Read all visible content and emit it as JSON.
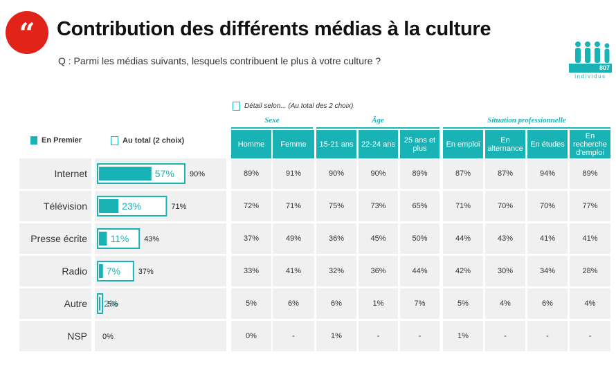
{
  "header": {
    "quote_glyph": "“",
    "title": "Contribution des différents médias à la culture",
    "question": "Q : Parmi les médias suivants, lesquels contribuent le plus à votre culture ?"
  },
  "logo": {
    "number": "807",
    "label": "individus",
    "icon": "people-icon"
  },
  "legend": {
    "first": "En Premier",
    "total": "Au total (2 choix)",
    "detail": "Détail selon... (Au total des 2 choix)"
  },
  "colors": {
    "teal": "#1ab3b5",
    "red": "#e2231a",
    "band": "#f0f0f0"
  },
  "groups": [
    {
      "label": "Sexe"
    },
    {
      "label": "Âge"
    },
    {
      "label": "Situation professionnelle"
    }
  ],
  "columns": [
    "Homme",
    "Femme",
    "15-21 ans",
    "22-24 ans",
    "25 ans et plus",
    "En emploi",
    "En alternance",
    "En études",
    "En recherche d'emploi"
  ],
  "chart_data": {
    "type": "bar",
    "categories": [
      "Internet",
      "Télévision",
      "Presse écrite",
      "Radio",
      "Autre",
      "NSP"
    ],
    "series": [
      {
        "name": "En Premier",
        "values": [
          57,
          23,
          11,
          7,
          2,
          null
        ],
        "labels": [
          "57%",
          "23%",
          "11%",
          "7%",
          "2%",
          ""
        ]
      },
      {
        "name": "Au total (2 choix)",
        "values": [
          90,
          71,
          43,
          37,
          5,
          0
        ],
        "labels": [
          "90%",
          "71%",
          "43%",
          "37%",
          "5%",
          "0%"
        ]
      }
    ],
    "table": [
      [
        "89%",
        "91%",
        "90%",
        "90%",
        "89%",
        "87%",
        "87%",
        "94%",
        "89%"
      ],
      [
        "72%",
        "71%",
        "75%",
        "73%",
        "65%",
        "71%",
        "70%",
        "70%",
        "77%"
      ],
      [
        "37%",
        "49%",
        "36%",
        "45%",
        "50%",
        "44%",
        "43%",
        "41%",
        "41%"
      ],
      [
        "33%",
        "41%",
        "32%",
        "36%",
        "44%",
        "42%",
        "30%",
        "34%",
        "28%"
      ],
      [
        "5%",
        "6%",
        "6%",
        "1%",
        "7%",
        "5%",
        "4%",
        "6%",
        "4%"
      ],
      [
        "0%",
        "-",
        "1%",
        "-",
        "-",
        "1%",
        "-",
        "-",
        "-"
      ]
    ]
  }
}
